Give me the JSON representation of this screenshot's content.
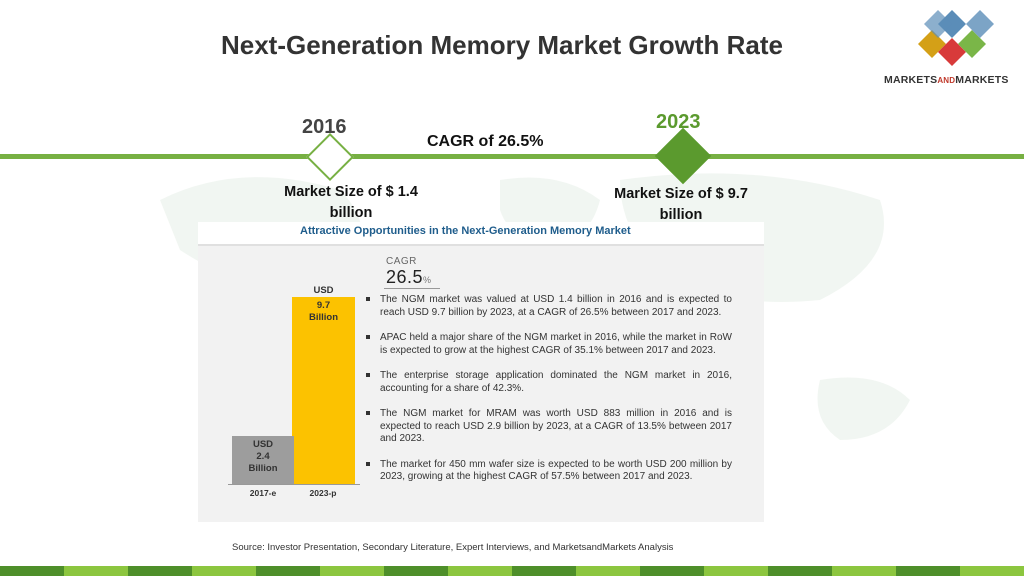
{
  "title": "Next-Generation Memory Market Growth Rate",
  "logo": {
    "text_main": "MARKETS",
    "text_small": "AND",
    "text_end": "MARKETS"
  },
  "timeline": {
    "start_year": "2016",
    "end_year": "2023",
    "cagr_label": "CAGR of 26.5%",
    "start_size": "Market Size of $ 1.4 billion",
    "end_size": "Market Size of $ 9.7 billion"
  },
  "panel": {
    "title": "Attractive Opportunities in the Next-Generation Memory Market",
    "cagr_small": "CAGR",
    "cagr_value": "26.5",
    "cagr_pct": "%",
    "bar_2023_top": "USD",
    "bar_2023_label": "9.7\nBillion",
    "bar_2017_label": "USD\n2.4\nBillion",
    "categories": [
      "2017-e",
      "2023-p"
    ],
    "bullets": [
      "The NGM market was valued at USD 1.4 billion in 2016 and is expected to reach USD 9.7 billion by 2023, at a CAGR of 26.5% between 2017 and 2023.",
      "APAC held a major share of the NGM market in 2016, while the market in RoW is expected to grow at the highest CAGR of 35.1% between 2017 and 2023.",
      "The enterprise storage application dominated the NGM market in 2016, accounting for a share of 42.3%.",
      "The NGM market for MRAM was worth USD 883 million in 2016 and is expected to reach USD 2.9 billion by 2023, at a CAGR of 13.5% between 2017 and 2023.",
      "The market for 450 mm wafer size is expected to be worth USD 200 million by 2023, growing at the highest CAGR of 57.5% between 2017 and 2023."
    ]
  },
  "source": "Source: Investor Presentation, Secondary Literature, Expert Interviews, and MarketsandMarkets Analysis",
  "colors": {
    "green": "#77b043",
    "dark_green": "#5b9a2e",
    "bar_yellow": "#fcc200",
    "bar_gray": "#9d9d9d",
    "footer": [
      "#4e8f2a",
      "#8cc63f",
      "#4e8f2a",
      "#8cc63f",
      "#4e8f2a",
      "#8cc63f",
      "#4e8f2a",
      "#8cc63f",
      "#4e8f2a",
      "#8cc63f",
      "#4e8f2a",
      "#8cc63f",
      "#4e8f2a",
      "#8cc63f",
      "#4e8f2a",
      "#8cc63f"
    ]
  },
  "chart_data": {
    "type": "bar",
    "categories": [
      "2017-e",
      "2023-p"
    ],
    "values": [
      2.4,
      9.7
    ],
    "ylabel": "",
    "title": ""
  }
}
